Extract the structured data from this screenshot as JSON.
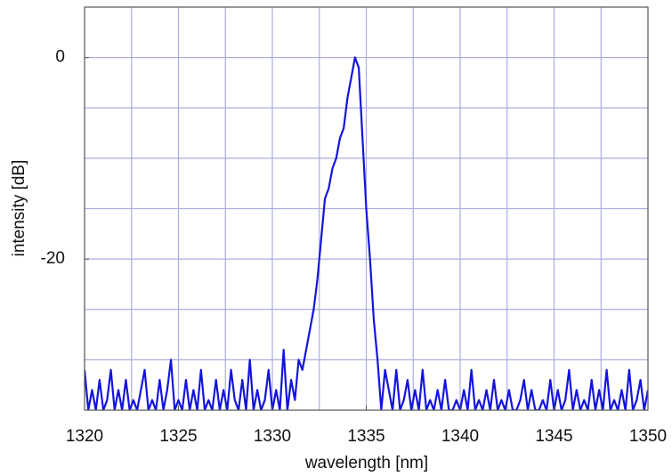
{
  "chart_data": {
    "type": "line",
    "xlabel": "wavelength [nm]",
    "ylabel": "intensity [dB]",
    "xlim": [
      1320,
      1350
    ],
    "ylim": [
      -35,
      5
    ],
    "xticks": [
      1320,
      1325,
      1330,
      1335,
      1340,
      1345,
      1350
    ],
    "yticks": [
      -20,
      0
    ],
    "xgrid": [
      1322.5,
      1325,
      1327.5,
      1330,
      1332.5,
      1335,
      1337.5,
      1340,
      1342.5,
      1345,
      1347.5
    ],
    "ygrid": [
      -30,
      -25,
      -20,
      -15,
      -10,
      -5,
      0
    ],
    "grid": true,
    "series": [
      {
        "color": "#1414dc",
        "x": [
          1320,
          1320.2,
          1320.4,
          1320.6,
          1320.8,
          1321,
          1321.2,
          1321.4,
          1321.6,
          1321.8,
          1322,
          1322.2,
          1322.4,
          1322.6,
          1322.8,
          1323,
          1323.2,
          1323.4,
          1323.6,
          1323.8,
          1324,
          1324.2,
          1324.4,
          1324.6,
          1324.8,
          1325,
          1325.2,
          1325.4,
          1325.6,
          1325.8,
          1326,
          1326.2,
          1326.4,
          1326.6,
          1326.8,
          1327,
          1327.2,
          1327.4,
          1327.6,
          1327.8,
          1328,
          1328.2,
          1328.4,
          1328.6,
          1328.8,
          1329,
          1329.2,
          1329.4,
          1329.6,
          1329.8,
          1330,
          1330.2,
          1330.4,
          1330.6,
          1330.8,
          1331,
          1331.2,
          1331.4,
          1331.6,
          1331.8,
          1332,
          1332.2,
          1332.4,
          1332.6,
          1332.8,
          1333,
          1333.2,
          1333.4,
          1333.6,
          1333.8,
          1334,
          1334.2,
          1334.4,
          1334.6,
          1334.8,
          1335,
          1335.2,
          1335.4,
          1335.6,
          1335.8,
          1336,
          1336.2,
          1336.4,
          1336.6,
          1336.8,
          1337,
          1337.2,
          1337.4,
          1337.6,
          1337.8,
          1338,
          1338.2,
          1338.4,
          1338.6,
          1338.8,
          1339,
          1339.2,
          1339.4,
          1339.6,
          1339.8,
          1340,
          1340.2,
          1340.4,
          1340.6,
          1340.8,
          1341,
          1341.2,
          1341.4,
          1341.6,
          1341.8,
          1342,
          1342.2,
          1342.4,
          1342.6,
          1342.8,
          1343,
          1343.2,
          1343.4,
          1343.6,
          1343.8,
          1344,
          1344.2,
          1344.4,
          1344.6,
          1344.8,
          1345,
          1345.2,
          1345.4,
          1345.6,
          1345.8,
          1346,
          1346.2,
          1346.4,
          1346.6,
          1346.8,
          1347,
          1347.2,
          1347.4,
          1347.6,
          1347.8,
          1348,
          1348.2,
          1348.4,
          1348.6,
          1348.8,
          1349,
          1349.2,
          1349.4,
          1349.6,
          1349.8,
          1350
        ],
        "values": [
          -31,
          -35,
          -33,
          -35,
          -32,
          -35,
          -34,
          -31,
          -35,
          -33,
          -35,
          -32,
          -35,
          -34,
          -35,
          -33,
          -31,
          -35,
          -34,
          -35,
          -32,
          -35,
          -33,
          -30,
          -35,
          -34,
          -35,
          -32,
          -35,
          -33,
          -35,
          -31,
          -35,
          -34,
          -35,
          -32,
          -35,
          -33,
          -35,
          -31,
          -34,
          -35,
          -32,
          -35,
          -30,
          -35,
          -33,
          -35,
          -34,
          -31,
          -35,
          -33,
          -35,
          -29,
          -35,
          -32,
          -34,
          -30,
          -31,
          -29,
          -27,
          -25,
          -22,
          -18,
          -14,
          -13,
          -11,
          -10,
          -8,
          -7,
          -4,
          -2,
          0,
          -1,
          -8,
          -15,
          -20,
          -26,
          -30,
          -35,
          -31,
          -33,
          -35,
          -31,
          -35,
          -34,
          -32,
          -35,
          -33,
          -35,
          -31,
          -35,
          -34,
          -35,
          -33,
          -35,
          -32,
          -35,
          -35,
          -34,
          -35,
          -33,
          -35,
          -31,
          -35,
          -34,
          -35,
          -33,
          -35,
          -32,
          -35,
          -34,
          -35,
          -33,
          -35,
          -35,
          -34,
          -32,
          -35,
          -33,
          -35,
          -35,
          -34,
          -35,
          -32,
          -35,
          -33,
          -35,
          -34,
          -31,
          -35,
          -33,
          -35,
          -34,
          -35,
          -32,
          -35,
          -33,
          -35,
          -31,
          -35,
          -34,
          -35,
          -33,
          -35,
          -31,
          -35,
          -34,
          -32,
          -35,
          -33
        ]
      }
    ]
  }
}
